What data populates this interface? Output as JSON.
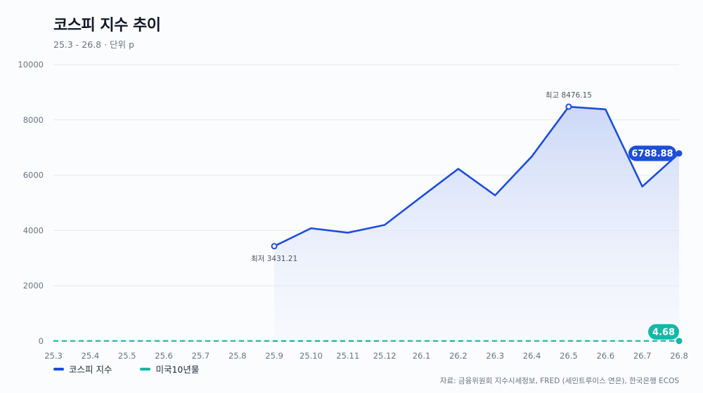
{
  "header": {
    "title": "코스피 지수 추이",
    "subtitle": "25.3 - 26.8 · 단위 p"
  },
  "source": "자료: 금융위원회 지수시세정보, FRED (세인트루이스 연은), 한국은행 ECOS",
  "colors": {
    "kospi": "#1d4ed8",
    "us10y": "#14b8a6",
    "grid": "#e5e7eb",
    "area_top": "#c7d4f5"
  },
  "legend": [
    {
      "name": "코스피 지수",
      "color": "#1d4ed8"
    },
    {
      "name": "미국10년물",
      "color": "#14b8a6"
    }
  ],
  "chart_data": {
    "type": "line",
    "categories": [
      "25.3",
      "25.4",
      "25.5",
      "25.6",
      "25.7",
      "25.8",
      "25.9",
      "25.10",
      "25.11",
      "25.12",
      "26.1",
      "26.2",
      "26.3",
      "26.4",
      "26.5",
      "26.6",
      "26.7",
      "26.8"
    ],
    "ylim": [
      0,
      10000
    ],
    "yticks": [
      "0",
      "2000",
      "4000",
      "6000",
      "8000",
      "10000"
    ],
    "grid": true,
    "legend_position": "bottom-left",
    "series": [
      {
        "name": "코스피 지수",
        "values": [
          null,
          null,
          null,
          null,
          null,
          null,
          3431.21,
          4080,
          3920,
          4200,
          5220,
          6230,
          5270,
          6680,
          8476.15,
          8380,
          5590,
          6788.88
        ]
      },
      {
        "name": "미국10년물",
        "values": [
          4.25,
          4.3,
          4.4,
          4.3,
          4.4,
          4.25,
          4.1,
          4.1,
          4.05,
          4.15,
          4.2,
          4.1,
          4.3,
          4.35,
          4.5,
          4.45,
          4.6,
          4.68
        ]
      }
    ],
    "annotations": {
      "min": {
        "label": "최저 3431.21",
        "index": 6,
        "value": 3431.21
      },
      "max": {
        "label": "최고 8476.15",
        "index": 14,
        "value": 8476.15
      },
      "last_kospi": {
        "label": "6788.88",
        "index": 17,
        "value": 6788.88
      },
      "last_us10y": {
        "label": "4.68",
        "index": 17,
        "value": 4.68
      }
    }
  }
}
